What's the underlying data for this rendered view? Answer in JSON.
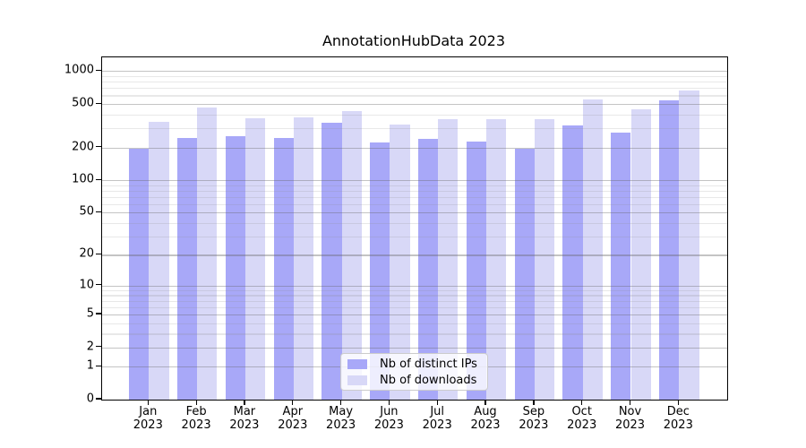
{
  "chart_data": {
    "type": "bar",
    "title": "AnnotationHubData 2023",
    "x": {
      "categories": [
        "Jan",
        "Feb",
        "Mar",
        "Apr",
        "May",
        "Jun",
        "Jul",
        "Aug",
        "Sep",
        "Oct",
        "Nov",
        "Dec"
      ],
      "year": "2023"
    },
    "series": [
      {
        "name": "Nb of distinct IPs",
        "color": "#a8a8f8",
        "values": [
          196,
          245,
          252,
          245,
          340,
          222,
          242,
          226,
          194,
          319,
          272,
          540
        ]
      },
      {
        "name": "Nb of downloads",
        "color": "#d8d8f7",
        "values": [
          346,
          465,
          368,
          377,
          434,
          323,
          364,
          363,
          367,
          555,
          447,
          670
        ]
      }
    ],
    "y_axis": {
      "scale": "log10(v+1)",
      "ticks": [
        0,
        1,
        2,
        5,
        10,
        20,
        50,
        100,
        200,
        500,
        1000
      ],
      "minor_gridlines": [
        3,
        4,
        6,
        7,
        8,
        9,
        30,
        40,
        60,
        70,
        80,
        90,
        300,
        400,
        600,
        700,
        800,
        900
      ],
      "max": 1340
    },
    "legend": {
      "position": "lower center"
    },
    "colors": {
      "major_grid": "rgba(100,100,100,0.38)",
      "minor_grid": "rgba(140,140,140,0.20)",
      "axis": "#000000"
    },
    "grid": true
  }
}
